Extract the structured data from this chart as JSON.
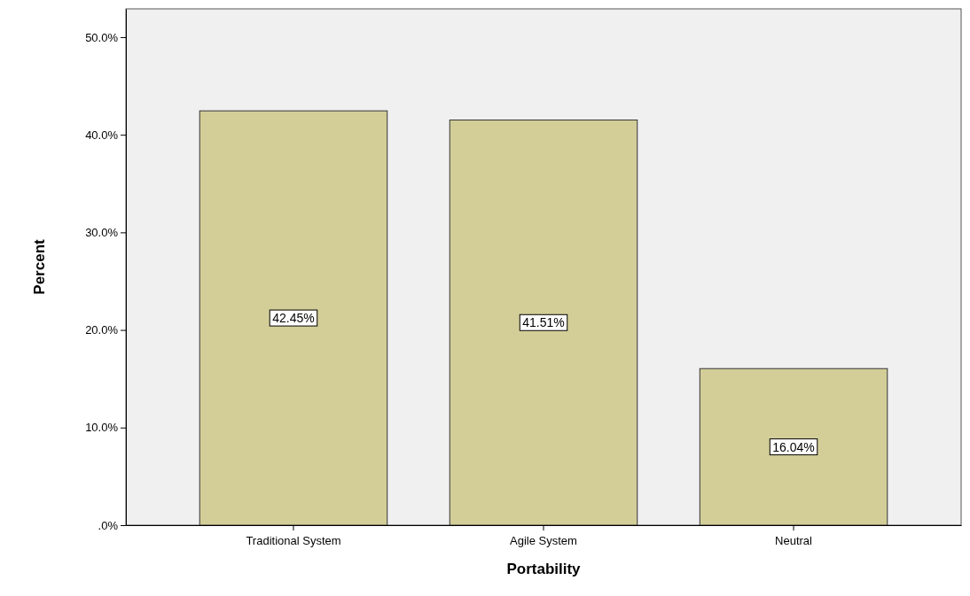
{
  "chart_data": {
    "type": "bar",
    "xlabel": "Portability",
    "ylabel": "Percent",
    "categories": [
      "Traditional System",
      "Agile System",
      "Neutral"
    ],
    "values": [
      42.45,
      41.51,
      16.04
    ],
    "value_labels": [
      "42.45%",
      "41.51%",
      "16.04%"
    ],
    "color": "#d3ce98",
    "ylim": [
      0,
      52.9
    ],
    "yticks": [
      {
        "value": 0,
        "label": ".0%"
      },
      {
        "value": 10,
        "label": "10.0%"
      },
      {
        "value": 20,
        "label": "20.0%"
      },
      {
        "value": 30,
        "label": "30.0%"
      },
      {
        "value": 40,
        "label": "40.0%"
      },
      {
        "value": 50,
        "label": "50.0%"
      }
    ],
    "grid": false
  }
}
